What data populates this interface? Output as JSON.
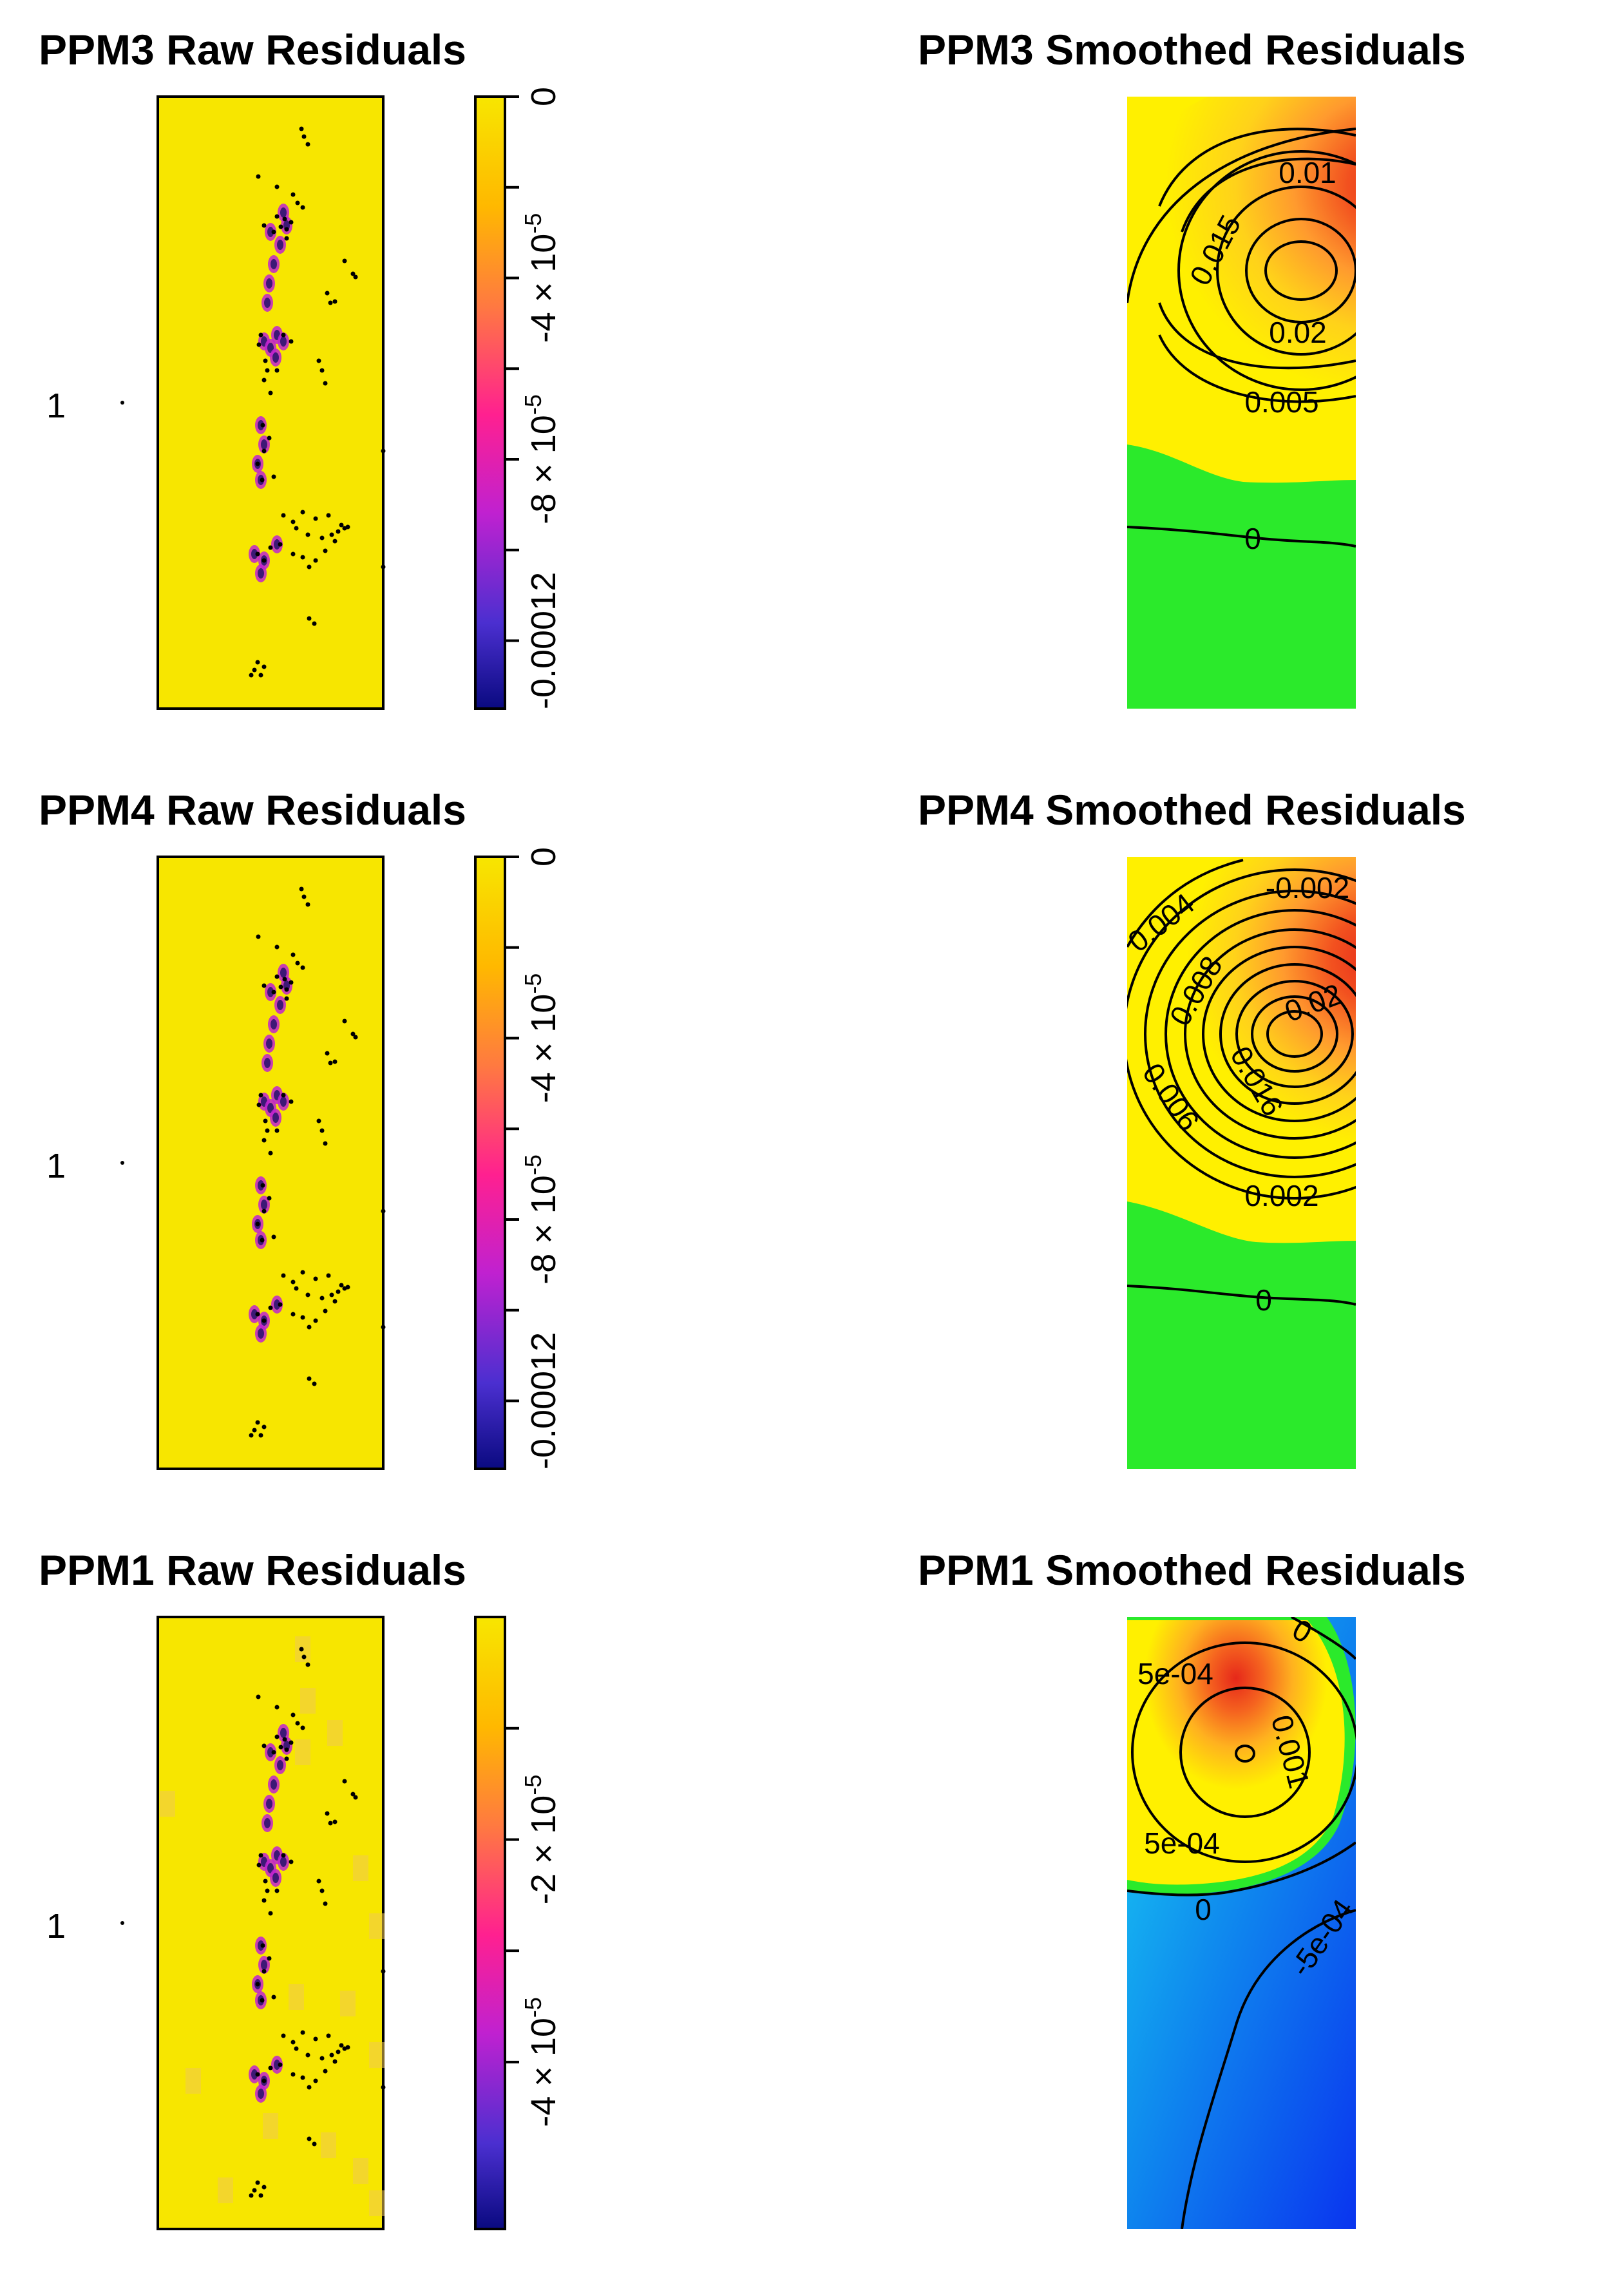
{
  "chart_data": [
    {
      "type": "heatmap",
      "title": "PPM3 Raw Residuals",
      "row_label": "1",
      "legend": {
        "min": -0.000135,
        "max": 0,
        "ticks": [
          {
            "value": 0,
            "label": "0"
          },
          {
            "value": -2e-05,
            "label": ""
          },
          {
            "value": -4e-05,
            "label": "-4 × 10",
            "exp": "-5"
          },
          {
            "value": -6e-05,
            "label": ""
          },
          {
            "value": -8e-05,
            "label": "-8 × 10",
            "exp": "-5"
          },
          {
            "value": -0.0001,
            "label": ""
          },
          {
            "value": -0.00012,
            "label": "-0.00012"
          }
        ]
      }
    },
    {
      "type": "heatmap",
      "title": "PPM3 Smoothed Residuals",
      "contours": [
        {
          "value": 0.01,
          "label": "0.01"
        },
        {
          "value": 0.015,
          "label": "0.015"
        },
        {
          "value": 0.02,
          "label": "0.02"
        },
        {
          "value": 0.005,
          "label": "0.005"
        },
        {
          "value": 0,
          "label": "0"
        }
      ]
    },
    {
      "type": "heatmap",
      "title": "PPM4 Raw Residuals",
      "row_label": "1",
      "legend": {
        "min": -0.000135,
        "max": 0,
        "ticks": [
          {
            "value": 0,
            "label": "0"
          },
          {
            "value": -2e-05,
            "label": ""
          },
          {
            "value": -4e-05,
            "label": "-4 × 10",
            "exp": "-5"
          },
          {
            "value": -6e-05,
            "label": ""
          },
          {
            "value": -8e-05,
            "label": "-8 × 10",
            "exp": "-5"
          },
          {
            "value": -0.0001,
            "label": ""
          },
          {
            "value": -0.00012,
            "label": "-0.00012"
          }
        ]
      }
    },
    {
      "type": "heatmap",
      "title": "PPM4 Smoothed Residuals",
      "contours": [
        {
          "value": -0.002,
          "label": "-0.002"
        },
        {
          "value": 0.004,
          "label": "0.004"
        },
        {
          "value": 0.008,
          "label": "0.008"
        },
        {
          "value": 0.02,
          "label": "0.02"
        },
        {
          "value": 0.016,
          "label": "0.016"
        },
        {
          "value": 0.006,
          "label": "0.006"
        },
        {
          "value": 0.002,
          "label": "0.002"
        },
        {
          "value": 0,
          "label": "0"
        }
      ]
    },
    {
      "type": "heatmap",
      "title": "PPM1 Raw Residuals",
      "row_label": "1",
      "legend": {
        "min": -5.5e-05,
        "max": 0,
        "ticks": [
          {
            "value": -1e-05,
            "label": ""
          },
          {
            "value": -2e-05,
            "label": "-2 × 10",
            "exp": "-5"
          },
          {
            "value": -3e-05,
            "label": ""
          },
          {
            "value": -4e-05,
            "label": "-4 × 10",
            "exp": "-5"
          }
        ]
      }
    },
    {
      "type": "heatmap",
      "title": "PPM1 Smoothed Residuals",
      "contours": [
        {
          "value": 0,
          "label": "0"
        },
        {
          "value": 0.0005,
          "label": "5e-04"
        },
        {
          "value": 0.001,
          "label": "0.001"
        },
        {
          "value": 0.0005,
          "label": "5e-04"
        },
        {
          "value": 0,
          "label": "0"
        },
        {
          "value": -0.0005,
          "label": "-5e-04"
        }
      ]
    }
  ],
  "colors": {
    "raw_background": "#f7e600",
    "raw_speckle": "#f0c840",
    "colorbar_stops": [
      "#0a0a80",
      "#4b2fd0",
      "#c021d0",
      "#ff2090",
      "#ff7a40",
      "#ffb800",
      "#f7e600"
    ],
    "smooth_positive_peak": "#e83a1c",
    "smooth_positive_mid": "#ff9a2e",
    "smooth_positive_low": "#fff000",
    "smooth_zero_band": "#2bea2b",
    "smooth_negative_low": "#18c7f0",
    "smooth_negative_deep": "#0a3aef"
  }
}
